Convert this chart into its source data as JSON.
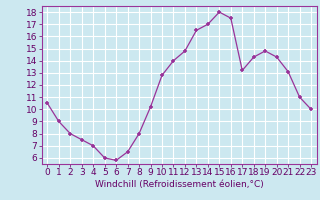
{
  "x": [
    0,
    1,
    2,
    3,
    4,
    5,
    6,
    7,
    8,
    9,
    10,
    11,
    12,
    13,
    14,
    15,
    16,
    17,
    18,
    19,
    20,
    21,
    22,
    23
  ],
  "y": [
    10.5,
    9.0,
    8.0,
    7.5,
    7.0,
    6.0,
    5.8,
    6.5,
    8.0,
    10.2,
    12.8,
    14.0,
    14.8,
    16.5,
    17.0,
    18.0,
    17.5,
    13.2,
    14.3,
    14.8,
    14.3,
    13.1,
    11.0,
    10.0
  ],
  "xlim": [
    -0.5,
    23.5
  ],
  "ylim": [
    5.5,
    18.5
  ],
  "yticks": [
    6,
    7,
    8,
    9,
    10,
    11,
    12,
    13,
    14,
    15,
    16,
    17,
    18
  ],
  "xticks": [
    0,
    1,
    2,
    3,
    4,
    5,
    6,
    7,
    8,
    9,
    10,
    11,
    12,
    13,
    14,
    15,
    16,
    17,
    18,
    19,
    20,
    21,
    22,
    23
  ],
  "xlabel": "Windchill (Refroidissement éolien,°C)",
  "line_color": "#993399",
  "marker": "+",
  "bg_color": "#cce8f0",
  "grid_color": "#ffffff",
  "label_color": "#660066",
  "tick_color": "#660066",
  "font_size": 6.5
}
